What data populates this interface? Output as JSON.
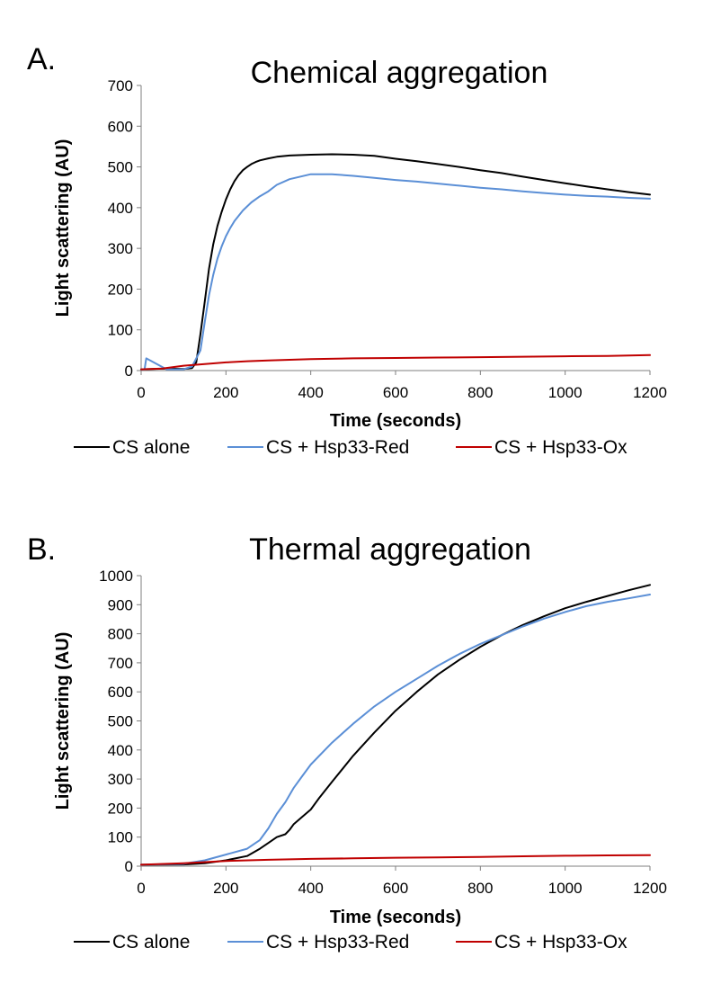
{
  "chart_data": [
    {
      "type": "line",
      "panel_label": "A.",
      "title": "Chemical aggregation",
      "xlabel": "Time (seconds)",
      "ylabel": "Light scattering (AU)",
      "xlim": [
        0,
        1200
      ],
      "ylim": [
        0,
        700
      ],
      "xticks": [
        0,
        200,
        400,
        600,
        800,
        1000,
        1200
      ],
      "yticks": [
        0,
        100,
        200,
        300,
        400,
        500,
        600,
        700
      ],
      "grid": false,
      "legend_position": "bottom",
      "series": [
        {
          "name": "CS alone",
          "color": "#000000",
          "x": [
            0,
            60,
            100,
            120,
            130,
            140,
            150,
            160,
            170,
            180,
            190,
            200,
            210,
            220,
            230,
            240,
            250,
            260,
            270,
            280,
            300,
            320,
            350,
            400,
            450,
            500,
            550,
            600,
            650,
            700,
            750,
            800,
            850,
            900,
            950,
            1000,
            1050,
            1100,
            1150,
            1200
          ],
          "y": [
            3,
            5,
            4,
            6,
            20,
            90,
            170,
            250,
            310,
            355,
            390,
            420,
            445,
            465,
            480,
            492,
            500,
            507,
            512,
            516,
            521,
            525,
            528,
            530,
            531,
            530,
            527,
            520,
            514,
            507,
            500,
            492,
            485,
            476,
            468,
            460,
            452,
            445,
            438,
            432
          ]
        },
        {
          "name": "CS + Hsp33-Red",
          "color": "#5b8fd6",
          "x": [
            0,
            8,
            12,
            60,
            100,
            120,
            140,
            150,
            160,
            170,
            180,
            190,
            200,
            210,
            220,
            240,
            260,
            280,
            300,
            320,
            350,
            400,
            450,
            500,
            550,
            600,
            650,
            700,
            750,
            800,
            850,
            900,
            950,
            1000,
            1050,
            1100,
            1150,
            1200
          ],
          "y": [
            3,
            3,
            30,
            3,
            3,
            10,
            50,
            120,
            185,
            235,
            275,
            305,
            330,
            350,
            367,
            393,
            413,
            428,
            440,
            456,
            470,
            482,
            482,
            478,
            473,
            468,
            464,
            459,
            454,
            449,
            445,
            440,
            436,
            432,
            429,
            427,
            424,
            422
          ]
        },
        {
          "name": "CS + Hsp33-Ox",
          "color": "#c00000",
          "x": [
            0,
            50,
            100,
            150,
            200,
            250,
            300,
            400,
            500,
            600,
            700,
            800,
            900,
            1000,
            1100,
            1200
          ],
          "y": [
            3,
            5,
            12,
            16,
            20,
            23,
            25,
            28,
            30,
            31,
            32,
            33,
            34,
            35,
            36,
            38
          ]
        }
      ]
    },
    {
      "type": "line",
      "panel_label": "B.",
      "title": "Thermal aggregation",
      "xlabel": "Time (seconds)",
      "ylabel": "Light scattering (AU)",
      "xlim": [
        0,
        1200
      ],
      "ylim": [
        0,
        1000
      ],
      "xticks": [
        0,
        200,
        400,
        600,
        800,
        1000,
        1200
      ],
      "yticks": [
        0,
        100,
        200,
        300,
        400,
        500,
        600,
        700,
        800,
        900,
        1000
      ],
      "grid": false,
      "legend_position": "bottom",
      "series": [
        {
          "name": "CS alone",
          "color": "#000000",
          "x": [
            0,
            100,
            150,
            200,
            250,
            280,
            300,
            320,
            340,
            350,
            360,
            380,
            400,
            420,
            450,
            500,
            550,
            600,
            650,
            700,
            750,
            800,
            850,
            900,
            950,
            1000,
            1050,
            1100,
            1150,
            1200
          ],
          "y": [
            5,
            6,
            10,
            20,
            35,
            60,
            80,
            100,
            110,
            125,
            145,
            170,
            195,
            235,
            290,
            380,
            460,
            535,
            600,
            660,
            710,
            755,
            795,
            830,
            860,
            888,
            910,
            930,
            950,
            968
          ]
        },
        {
          "name": "CS + Hsp33-Red",
          "color": "#5b8fd6",
          "x": [
            0,
            100,
            150,
            200,
            250,
            280,
            300,
            320,
            340,
            360,
            380,
            400,
            450,
            500,
            550,
            600,
            650,
            700,
            750,
            800,
            850,
            900,
            950,
            1000,
            1050,
            1100,
            1150,
            1200
          ],
          "y": [
            5,
            8,
            20,
            40,
            60,
            90,
            130,
            180,
            220,
            270,
            310,
            350,
            425,
            490,
            550,
            600,
            645,
            690,
            730,
            765,
            795,
            825,
            852,
            875,
            895,
            910,
            922,
            935
          ]
        },
        {
          "name": "CS + Hsp33-Ox",
          "color": "#c00000",
          "x": [
            0,
            100,
            200,
            300,
            400,
            500,
            600,
            700,
            800,
            900,
            1000,
            1100,
            1200
          ],
          "y": [
            5,
            10,
            18,
            22,
            25,
            27,
            29,
            30,
            32,
            34,
            36,
            37,
            38
          ]
        }
      ]
    }
  ]
}
